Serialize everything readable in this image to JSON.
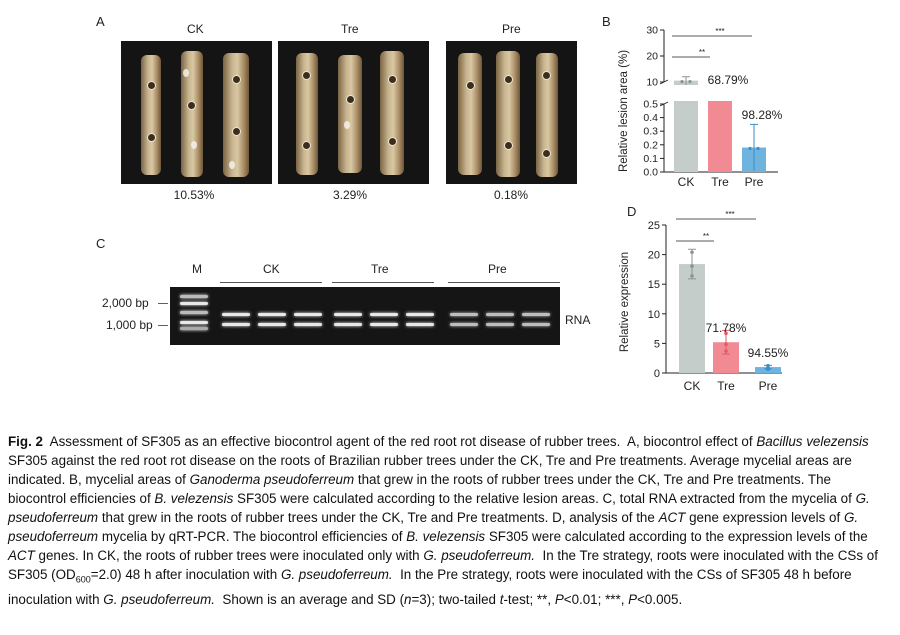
{
  "panel_a": {
    "letter": "A",
    "titles": [
      "CK",
      "Tre",
      "Pre"
    ],
    "percents": [
      "10.53%",
      "3.29%",
      "0.18%"
    ]
  },
  "panel_b": {
    "letter": "B",
    "ylabel": "Relative lesion area (%)",
    "sig_short": "**",
    "sig_long": "***",
    "chart_data": {
      "type": "bar",
      "categories": [
        "CK",
        "Tre",
        "Pre"
      ],
      "values": [
        10.53,
        3.29,
        0.18
      ],
      "errors": [
        1.5,
        0.8,
        0.17
      ],
      "annotations": [
        "",
        "68.79%",
        "98.28%"
      ],
      "ylabel": "Relative lesion area (%)",
      "axis_break": [
        0.5,
        10
      ],
      "ytick_labels_lower": [
        "0.0",
        "0.1",
        "0.2",
        "0.3",
        "0.4",
        "0.5"
      ],
      "ytick_labels_upper": [
        "10",
        "20",
        "30"
      ],
      "colors": [
        "#c4cdc9",
        "#f28a93",
        "#6fb3df"
      ]
    }
  },
  "panel_c": {
    "letter": "C",
    "marker_label": "M",
    "group_labels": [
      "CK",
      "Tre",
      "Pre"
    ],
    "ladder": [
      "2,000 bp",
      "1,000 bp"
    ],
    "rna_label": "RNA"
  },
  "panel_d": {
    "letter": "D",
    "ylabel": "Relative expression",
    "sig_short": "**",
    "sig_long": "***",
    "chart_data": {
      "type": "bar",
      "categories": [
        "CK",
        "Tre",
        "Pre"
      ],
      "values": [
        18.4,
        5.2,
        1.0
      ],
      "errors": [
        2.5,
        2.0,
        0.3
      ],
      "annotations": [
        "",
        "71.78%",
        "94.55%"
      ],
      "ylabel": "Relative expression",
      "ylim": [
        0,
        25
      ],
      "yticks": [
        "0",
        "5",
        "10",
        "15",
        "20",
        "25"
      ],
      "colors": [
        "#c4cdc9",
        "#f28a93",
        "#6fb3df"
      ]
    }
  },
  "caption": {
    "fig": "Fig. 2",
    "title": "Assessment of SF305 as an effective biocontrol agent of the red root rot disease of rubber trees.",
    "t1": "A, biocontrol effect of",
    "i1": "Bacillus velezensis",
    "t2": "SF305 against the red root rot disease on the roots of Brazilian rubber trees under the CK, Tre and Pre treatments. Average mycelial areas are indicated. B, mycelial areas of",
    "i2": "Ganoderma pseudoferreum",
    "t3": "that grew in the roots of rubber trees under the CK, Tre and Pre treatments. The biocontrol efficiencies of",
    "i3": "B. velezensis",
    "t4": "SF305 were calculated according to the relative lesion areas. C, total RNA extracted from the mycelia of",
    "i4": "G. pseudoferreum",
    "t5": "that grew in the roots of rubber trees under the CK, Tre and Pre treatments. D, analysis of the",
    "i5": "ACT",
    "t6": "gene expression levels of",
    "i6": "G. pseudoferreum",
    "t7": "mycelia by qRT-PCR. The biocontrol efficiencies of",
    "i7": "B. velezensis",
    "t8": "SF305 were calculated according to the expression levels of the",
    "i8": "ACT",
    "t9": "genes. In CK, the roots of rubber trees were inoculated only with",
    "i9": "G. pseudoferreum.",
    "t10": "In the Tre strategy, roots were inoculated with the CSs of SF305 (OD",
    "sub": "600",
    "t11": "=2.0) 48 h after inoculation with",
    "i10": "G. pseudoferreum.",
    "t12": "In the Pre strategy, roots were inoculated with the CSs of SF305 48 h before inoculation with",
    "i11": "G. pseudoferreum.",
    "t13": "Shown is an average and SD (",
    "i12": "n",
    "t14": "=3); two-tailed",
    "i13": "t",
    "t15": "-test; **,",
    "i14": "P",
    "t16": "<0.01; ***,",
    "i15": "P",
    "t17": "<0.005."
  }
}
